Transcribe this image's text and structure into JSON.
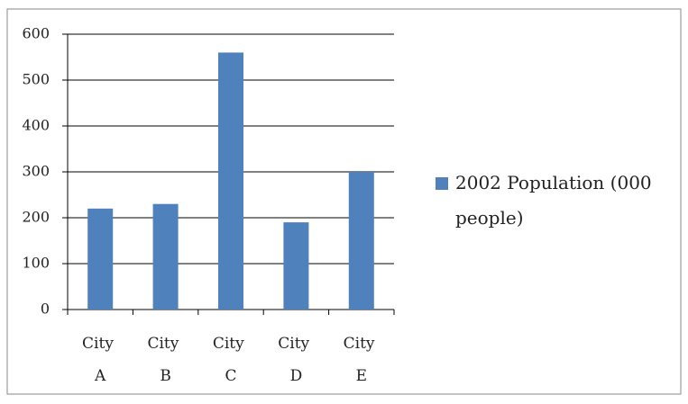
{
  "chart_data": {
    "type": "bar",
    "categories": [
      "City A",
      "City B",
      "City C",
      "City D",
      "City E"
    ],
    "series": [
      {
        "name": "2002 Population (000 people)",
        "color": "#4f81bd",
        "values": [
          220,
          230,
          560,
          190,
          300
        ]
      }
    ],
    "ylim": [
      0,
      600
    ],
    "yticks": [
      0,
      100,
      200,
      300,
      400,
      500,
      600
    ],
    "grid": true,
    "legend": "right"
  }
}
